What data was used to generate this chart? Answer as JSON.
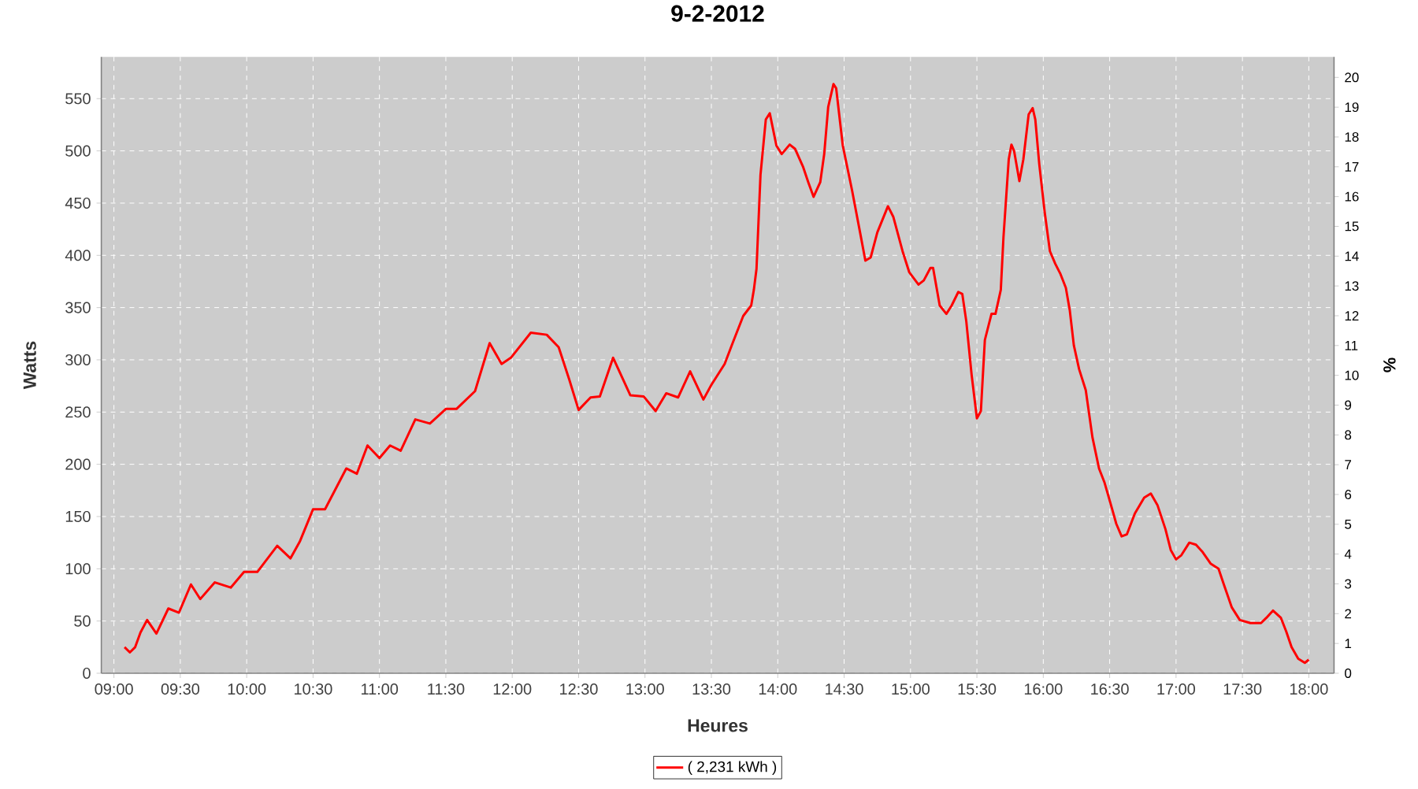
{
  "chart_data": {
    "type": "line",
    "title": "9-2-2012",
    "xlabel": "Heures",
    "ylabel": "Watts",
    "y2label": "%",
    "xlim": [
      8.905,
      18.19
    ],
    "ylim": [
      0,
      590
    ],
    "y2lim": [
      0,
      20.69
    ],
    "xticks": [
      {
        "value": 9,
        "label": "09:00"
      },
      {
        "value": 9.5,
        "label": "09:30"
      },
      {
        "value": 10,
        "label": "10:00"
      },
      {
        "value": 10.5,
        "label": "10:30"
      },
      {
        "value": 11,
        "label": "11:00"
      },
      {
        "value": 11.5,
        "label": "11:30"
      },
      {
        "value": 12,
        "label": "12:00"
      },
      {
        "value": 12.5,
        "label": "12:30"
      },
      {
        "value": 13,
        "label": "13:00"
      },
      {
        "value": 13.5,
        "label": "13:30"
      },
      {
        "value": 14,
        "label": "14:00"
      },
      {
        "value": 14.5,
        "label": "14:30"
      },
      {
        "value": 15,
        "label": "15:00"
      },
      {
        "value": 15.5,
        "label": "15:30"
      },
      {
        "value": 16,
        "label": "16:00"
      },
      {
        "value": 16.5,
        "label": "16:30"
      },
      {
        "value": 17,
        "label": "17:00"
      },
      {
        "value": 17.5,
        "label": "17:30"
      },
      {
        "value": 18,
        "label": "18:00"
      }
    ],
    "yticks": [
      0,
      50,
      100,
      150,
      200,
      250,
      300,
      350,
      400,
      450,
      500,
      550
    ],
    "y2ticks": [
      0,
      1,
      2,
      3,
      4,
      5,
      6,
      7,
      8,
      9,
      10,
      11,
      12,
      13,
      14,
      15,
      16,
      17,
      18,
      19,
      20
    ],
    "grid": true,
    "legend": "bottom",
    "line_style": "solid",
    "series": [
      {
        "name": "( 2,231 kWh )",
        "color": "#ff0000",
        "x": [
          9.08,
          9.12,
          9.16,
          9.2,
          9.25,
          9.32,
          9.41,
          9.49,
          9.58,
          9.65,
          9.76,
          9.88,
          9.98,
          10.08,
          10.23,
          10.33,
          10.4,
          10.5,
          10.59,
          10.75,
          10.83,
          10.91,
          11.0,
          11.08,
          11.16,
          11.27,
          11.38,
          11.5,
          11.58,
          11.72,
          11.83,
          11.92,
          11.99,
          12.14,
          12.26,
          12.35,
          12.43,
          12.5,
          12.59,
          12.66,
          12.76,
          12.89,
          12.99,
          13.08,
          13.16,
          13.25,
          13.34,
          13.44,
          13.5,
          13.6,
          13.66,
          13.74,
          13.8,
          13.82,
          13.84,
          13.87,
          13.91,
          13.94,
          13.99,
          14.03,
          14.09,
          14.13,
          14.19,
          14.23,
          14.27,
          14.32,
          14.35,
          14.38,
          14.42,
          14.44,
          14.49,
          14.56,
          14.62,
          14.66,
          14.7,
          14.75,
          14.83,
          14.87,
          14.94,
          14.99,
          15.06,
          15.1,
          15.15,
          15.17,
          15.22,
          15.27,
          15.31,
          15.36,
          15.39,
          15.42,
          15.46,
          15.5,
          15.53,
          15.56,
          15.61,
          15.64,
          15.68,
          15.7,
          15.74,
          15.76,
          15.78,
          15.82,
          15.85,
          15.89,
          15.92,
          15.94,
          15.97,
          16.01,
          16.05,
          16.09,
          16.13,
          16.17,
          16.2,
          16.23,
          16.27,
          16.32,
          16.37,
          16.42,
          16.46,
          16.51,
          16.55,
          16.59,
          16.63,
          16.69,
          16.76,
          16.81,
          16.86,
          16.92,
          16.96,
          17.0,
          17.04,
          17.1,
          17.15,
          17.2,
          17.26,
          17.32,
          17.36,
          17.42,
          17.48,
          17.56,
          17.64,
          17.68,
          17.73,
          17.79,
          17.83,
          17.87,
          17.92,
          17.97,
          18.0
        ],
        "values": [
          25,
          20,
          25,
          39,
          51,
          38,
          62,
          58,
          85,
          71,
          87,
          82,
          97,
          97,
          122,
          110,
          126,
          157,
          157,
          196,
          191,
          218,
          206,
          218,
          213,
          243,
          239,
          253,
          253,
          270,
          316,
          296,
          302,
          326,
          324,
          312,
          281,
          252,
          264,
          265,
          302,
          266,
          265,
          251,
          268,
          264,
          289,
          262,
          276,
          296,
          316,
          342,
          352,
          367,
          387,
          477,
          530,
          536,
          505,
          497,
          506,
          502,
          485,
          470,
          456,
          470,
          497,
          542,
          564,
          560,
          505,
          462,
          422,
          395,
          398,
          422,
          447,
          437,
          404,
          384,
          372,
          376,
          388,
          388,
          352,
          344,
          352,
          365,
          363,
          337,
          286,
          244,
          251,
          319,
          344,
          344,
          367,
          417,
          492,
          506,
          500,
          471,
          492,
          535,
          541,
          530,
          487,
          442,
          404,
          392,
          382,
          369,
          347,
          314,
          291,
          271,
          226,
          196,
          183,
          161,
          143,
          131,
          133,
          153,
          168,
          172,
          161,
          138,
          118,
          109,
          113,
          125,
          123,
          116,
          105,
          100,
          85,
          63,
          51,
          48,
          48,
          53,
          60,
          53,
          40,
          25,
          14,
          10,
          13
        ]
      }
    ]
  }
}
